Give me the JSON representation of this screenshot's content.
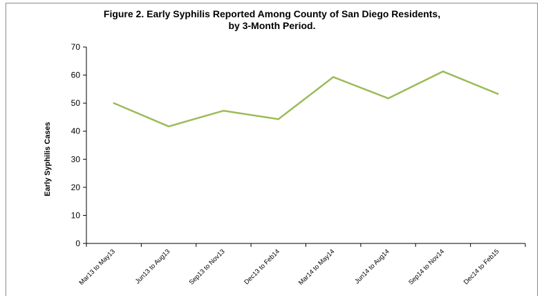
{
  "chart_data": {
    "type": "line",
    "title": [
      "Figure 2. Early Syphilis Reported Among County of San Diego Residents,",
      "by 3-Month Period."
    ],
    "xlabel": "",
    "ylabel": "Early Syphilis Cases",
    "categories": [
      "Mar13 to May13",
      "Jun13 to Aug13",
      "Sep13 to Nov13",
      "Dec13 to Feb14",
      "Mar14 to May14",
      "Jun14 to Aug14",
      "Sep14 to Nov14",
      "Dec14 to Feb15"
    ],
    "series": [
      {
        "values": [
          50,
          41.7,
          47.3,
          44.3,
          59.3,
          51.7,
          61.3,
          53.3
        ],
        "color": "#9bbb59"
      }
    ],
    "ylim": [
      0,
      70
    ],
    "yticks": [
      0,
      10,
      20,
      30,
      40,
      50,
      60,
      70
    ],
    "grid": false,
    "legend": "none"
  }
}
